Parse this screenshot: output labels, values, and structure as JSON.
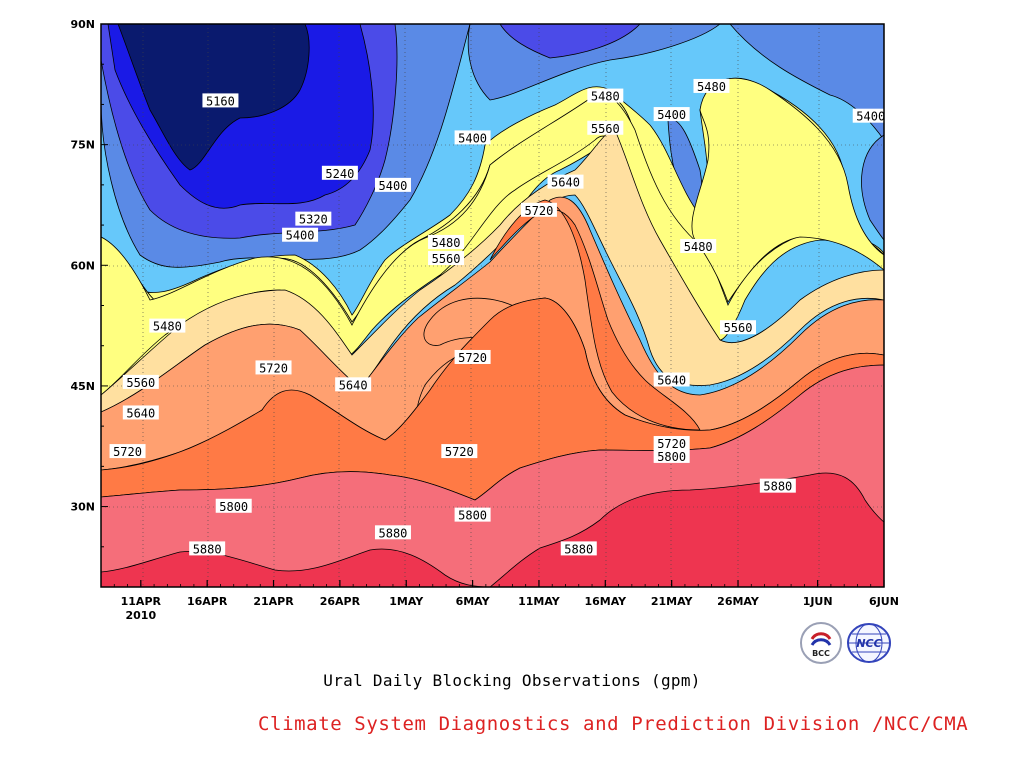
{
  "caption": "Ural Daily Blocking Observations (gpm)",
  "credit": "Climate System Diagnostics and Prediction Division /NCC/CMA",
  "colors": {
    "credit_text": "#dd2222",
    "contour_line": "#000000",
    "fills": [
      "#0a1a6e",
      "#1a1ae6",
      "#4b4be8",
      "#5a8ae6",
      "#66c8fa",
      "#ffff80",
      "#ffe0a0",
      "#ffa070",
      "#ff7a45",
      "#f56e7a",
      "#ee3550"
    ]
  },
  "logos": [
    {
      "name": "bcc-logo",
      "text": "BCC"
    },
    {
      "name": "ncc-logo",
      "text": "NCC"
    }
  ],
  "chart_data": {
    "type": "contour",
    "title": "",
    "xlabel": "",
    "ylabel": "",
    "x_tick_labels": [
      "11APR",
      "16APR",
      "21APR",
      "26APR",
      "1MAY",
      "6MAY",
      "11MAY",
      "16MAY",
      "21MAY",
      "26MAY",
      "1JUN",
      "6JUN"
    ],
    "x_year_label": "2010",
    "x_range": [
      "2010-04-08",
      "2010-06-06"
    ],
    "y_tick_labels": [
      "30N",
      "45N",
      "60N",
      "75N",
      "90N"
    ],
    "y_range": [
      20,
      90
    ],
    "grid": true,
    "contour_levels": [
      5160,
      5240,
      5320,
      5400,
      5480,
      5560,
      5640,
      5720,
      5800,
      5880
    ],
    "contour_labels": [
      {
        "text": "5160",
        "date": "2010-04-17",
        "lat": 80.5
      },
      {
        "text": "5240",
        "date": "2010-04-26",
        "lat": 71.5
      },
      {
        "text": "5320",
        "date": "2010-04-24",
        "lat": 65.8
      },
      {
        "text": "5400",
        "date": "2010-04-23",
        "lat": 63.8
      },
      {
        "text": "5400",
        "date": "2010-04-30",
        "lat": 70.0
      },
      {
        "text": "5400",
        "date": "2010-05-06",
        "lat": 75.9
      },
      {
        "text": "5400",
        "date": "2010-05-21",
        "lat": 78.8
      },
      {
        "text": "5400",
        "date": "2010-06-05",
        "lat": 78.6
      },
      {
        "text": "5480",
        "date": "2010-05-16",
        "lat": 81.1
      },
      {
        "text": "5480",
        "date": "2010-05-24",
        "lat": 82.3
      },
      {
        "text": "5480",
        "date": "2010-05-04",
        "lat": 62.9
      },
      {
        "text": "5480",
        "date": "2010-05-23",
        "lat": 62.4
      },
      {
        "text": "5480",
        "date": "2010-04-13",
        "lat": 52.5
      },
      {
        "text": "5560",
        "date": "2010-05-16",
        "lat": 77.1
      },
      {
        "text": "5560",
        "date": "2010-05-04",
        "lat": 60.9
      },
      {
        "text": "5560",
        "date": "2010-05-26",
        "lat": 52.3
      },
      {
        "text": "5560",
        "date": "2010-04-11",
        "lat": 45.5
      },
      {
        "text": "5640",
        "date": "2010-05-13",
        "lat": 70.4
      },
      {
        "text": "5640",
        "date": "2010-04-27",
        "lat": 45.2
      },
      {
        "text": "5640",
        "date": "2010-05-21",
        "lat": 45.8
      },
      {
        "text": "5640",
        "date": "2010-04-11",
        "lat": 41.7
      },
      {
        "text": "5720",
        "date": "2010-05-11",
        "lat": 66.9
      },
      {
        "text": "5720",
        "date": "2010-04-21",
        "lat": 47.3
      },
      {
        "text": "5720",
        "date": "2010-05-06",
        "lat": 48.6
      },
      {
        "text": "5720",
        "date": "2010-05-05",
        "lat": 36.9
      },
      {
        "text": "5720",
        "date": "2010-04-10",
        "lat": 36.9
      },
      {
        "text": "5720",
        "date": "2010-05-21",
        "lat": 37.9
      },
      {
        "text": "5800",
        "date": "2010-04-18",
        "lat": 30.1
      },
      {
        "text": "5800",
        "date": "2010-05-06",
        "lat": 29.0
      },
      {
        "text": "5800",
        "date": "2010-05-21",
        "lat": 36.3
      },
      {
        "text": "5880",
        "date": "2010-04-16",
        "lat": 24.8
      },
      {
        "text": "5880",
        "date": "2010-04-30",
        "lat": 26.8
      },
      {
        "text": "5880",
        "date": "2010-05-14",
        "lat": 24.8
      },
      {
        "text": "5880",
        "date": "2010-05-29",
        "lat": 32.6
      }
    ]
  }
}
